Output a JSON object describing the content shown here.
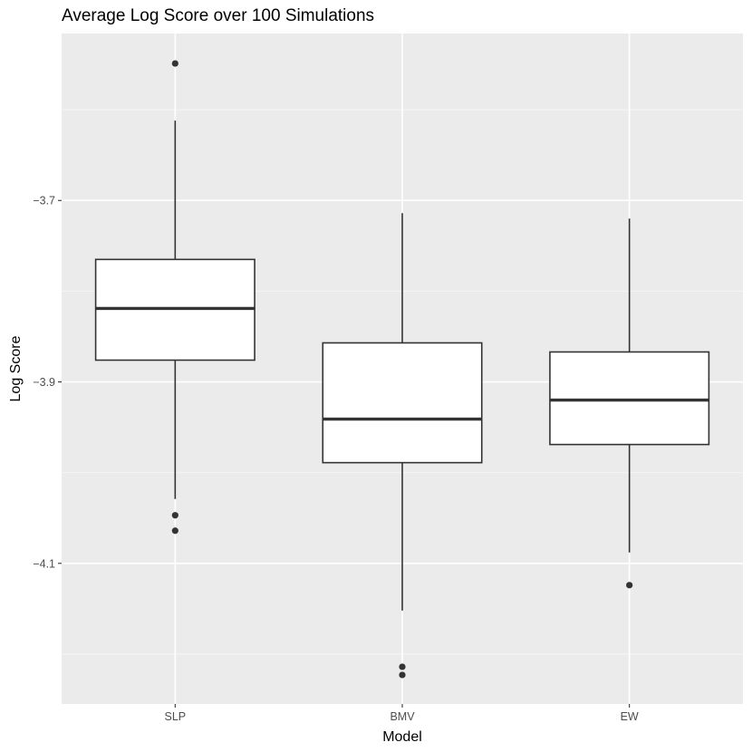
{
  "chart_data": {
    "type": "boxplot",
    "title": "Average Log Score over 100 Simulations",
    "xlabel": "Model",
    "ylabel": "Log Score",
    "categories": [
      "SLP",
      "BMV",
      "EW"
    ],
    "ylim": [
      -4.255,
      -3.516
    ],
    "yticks": [
      -3.7,
      -3.9,
      -4.1
    ],
    "ytick_labels": [
      "−3.7",
      "−3.9",
      "−4.1"
    ],
    "grid": true,
    "boxes": [
      {
        "category": "SLP",
        "whisker_low": -4.029,
        "q1": -3.876,
        "median": -3.819,
        "q3": -3.765,
        "whisker_high": -3.612,
        "outliers": [
          -3.549,
          -4.047,
          -4.064
        ]
      },
      {
        "category": "BMV",
        "whisker_low": -4.152,
        "q1": -3.989,
        "median": -3.941,
        "q3": -3.857,
        "whisker_high": -3.714,
        "outliers": [
          -4.214,
          -4.223
        ]
      },
      {
        "category": "EW",
        "whisker_low": -4.088,
        "q1": -3.969,
        "median": -3.92,
        "q3": -3.867,
        "whisker_high": -3.72,
        "outliers": [
          -4.124
        ]
      }
    ],
    "colors": {
      "panel": "#ebebeb",
      "grid_major": "#ffffff",
      "grid_minor": "#f6f6f6",
      "box_fill": "#ffffff",
      "line": "#333333",
      "tick_text": "#4d4d4d"
    }
  }
}
